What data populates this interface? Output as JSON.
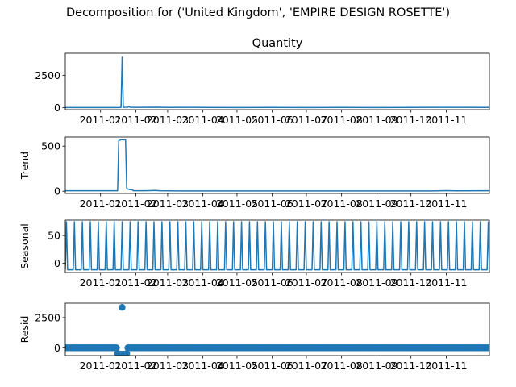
{
  "figure": {
    "title": "Decomposition for ('United Kingdom', 'EMPIRE DESIGN ROSETTE')"
  },
  "chart_data": [
    {
      "type": "line",
      "title": "Quantity",
      "ylabel": "",
      "x_range": [
        "2010-12-01",
        "2011-12-09"
      ],
      "ylim": [
        -150,
        4200
      ],
      "y_ticks": [
        0,
        2500
      ],
      "x_tick_labels": [
        "2011-01",
        "2011-02",
        "2011-03",
        "2011-04",
        "2011-05",
        "2011-06",
        "2011-07",
        "2011-08",
        "2011-09",
        "2011-10",
        "2011-11"
      ],
      "x_tick_dates": [
        "2011-01-01",
        "2011-02-01",
        "2011-03-01",
        "2011-04-01",
        "2011-05-01",
        "2011-06-01",
        "2011-07-01",
        "2011-08-01",
        "2011-09-01",
        "2011-10-01",
        "2011-11-01"
      ],
      "series": [
        {
          "color": "#1f77b4",
          "points": [
            [
              "2010-12-01",
              15
            ],
            [
              "2011-01-18",
              15
            ],
            [
              "2011-01-19",
              25
            ],
            [
              "2011-01-20",
              3900
            ],
            [
              "2011-01-21",
              40
            ],
            [
              "2011-01-25",
              30
            ],
            [
              "2011-01-26",
              110
            ],
            [
              "2011-01-27",
              30
            ],
            [
              "2011-02-05",
              25
            ],
            [
              "2011-02-20",
              35
            ],
            [
              "2011-03-01",
              20
            ],
            [
              "2011-03-20",
              30
            ],
            [
              "2011-04-01",
              20
            ],
            [
              "2011-05-01",
              15
            ],
            [
              "2011-06-01",
              20
            ],
            [
              "2011-07-01",
              15
            ],
            [
              "2011-08-01",
              20
            ],
            [
              "2011-09-01",
              15
            ],
            [
              "2011-10-01",
              20
            ],
            [
              "2011-11-01",
              25
            ],
            [
              "2011-12-09",
              20
            ]
          ]
        }
      ]
    },
    {
      "type": "line",
      "title": "",
      "ylabel": "Trend",
      "x_range": [
        "2010-12-01",
        "2011-12-09"
      ],
      "ylim": [
        -25,
        600
      ],
      "y_ticks": [
        0,
        500
      ],
      "x_tick_labels": [
        "2011-01",
        "2011-02",
        "2011-03",
        "2011-04",
        "2011-05",
        "2011-06",
        "2011-07",
        "2011-08",
        "2011-09",
        "2011-10",
        "2011-11"
      ],
      "x_tick_dates": [
        "2011-01-01",
        "2011-02-01",
        "2011-03-01",
        "2011-04-01",
        "2011-05-01",
        "2011-06-01",
        "2011-07-01",
        "2011-08-01",
        "2011-09-01",
        "2011-10-01",
        "2011-11-01"
      ],
      "series": [
        {
          "color": "#1f77b4",
          "points": [
            [
              "2010-12-01",
              5
            ],
            [
              "2011-01-16",
              5
            ],
            [
              "2011-01-17",
              560
            ],
            [
              "2011-01-19",
              570
            ],
            [
              "2011-01-23",
              570
            ],
            [
              "2011-01-24",
              30
            ],
            [
              "2011-01-26",
              20
            ],
            [
              "2011-01-29",
              15
            ],
            [
              "2011-01-30",
              5
            ],
            [
              "2011-02-10",
              5
            ],
            [
              "2011-02-18",
              8
            ],
            [
              "2011-02-22",
              5
            ],
            [
              "2011-03-10",
              3
            ],
            [
              "2011-05-01",
              3
            ],
            [
              "2011-08-01",
              3
            ],
            [
              "2011-10-20",
              3
            ],
            [
              "2011-11-01",
              6
            ],
            [
              "2011-11-10",
              4
            ],
            [
              "2011-12-09",
              5
            ]
          ]
        }
      ]
    },
    {
      "type": "line",
      "title": "",
      "ylabel": "Seasonal",
      "x_range": [
        "2010-12-01",
        "2011-12-09"
      ],
      "ylim": [
        -17,
        78
      ],
      "y_ticks": [
        0,
        50
      ],
      "x_tick_labels": [
        "2011-01",
        "2011-02",
        "2011-03",
        "2011-04",
        "2011-05",
        "2011-06",
        "2011-07",
        "2011-08",
        "2011-09",
        "2011-10",
        "2011-11"
      ],
      "x_tick_dates": [
        "2011-01-01",
        "2011-02-01",
        "2011-03-01",
        "2011-04-01",
        "2011-05-01",
        "2011-06-01",
        "2011-07-01",
        "2011-08-01",
        "2011-09-01",
        "2011-10-01",
        "2011-11-01"
      ],
      "periodic": {
        "start": "2010-12-02",
        "period_days": 7,
        "high": 75,
        "low": -12
      },
      "series": [
        {
          "color": "#1f77b4"
        }
      ]
    },
    {
      "type": "scatter",
      "title": "",
      "ylabel": "Resid",
      "x_range": [
        "2010-12-01",
        "2011-12-09"
      ],
      "ylim": [
        -650,
        3700
      ],
      "y_ticks": [
        0,
        2500
      ],
      "x_tick_labels": [
        "2011-01",
        "2011-02",
        "2011-03",
        "2011-04",
        "2011-05",
        "2011-06",
        "2011-07",
        "2011-08",
        "2011-09",
        "2011-10",
        "2011-11"
      ],
      "x_tick_dates": [
        "2011-01-01",
        "2011-02-01",
        "2011-03-01",
        "2011-04-01",
        "2011-05-01",
        "2011-06-01",
        "2011-07-01",
        "2011-08-01",
        "2011-09-01",
        "2011-10-01",
        "2011-11-01"
      ],
      "outliers": [
        [
          "2011-01-16",
          -480
        ],
        [
          "2011-01-17",
          -530
        ],
        [
          "2011-01-18",
          -510
        ],
        [
          "2011-01-19",
          -530
        ],
        [
          "2011-01-20",
          3350
        ],
        [
          "2011-01-21",
          -520
        ],
        [
          "2011-01-22",
          -540
        ],
        [
          "2011-01-23",
          -510
        ],
        [
          "2011-01-24",
          -480
        ]
      ],
      "baseline": {
        "start": "2010-12-01",
        "end": "2011-12-09",
        "value": 0
      },
      "series": [
        {
          "color": "#1f77b4"
        }
      ]
    }
  ]
}
